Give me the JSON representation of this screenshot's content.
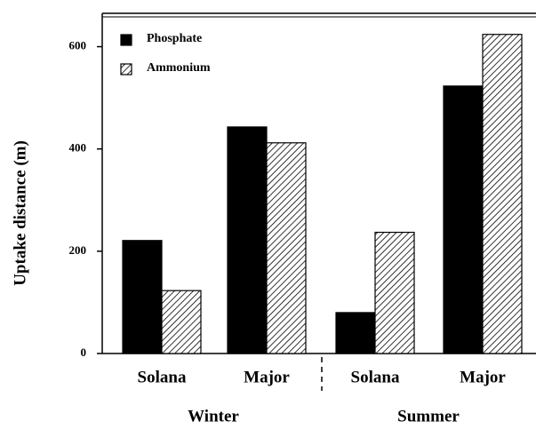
{
  "chart_data": {
    "type": "bar",
    "y_label": "Uptake distance (m)",
    "categories": [
      "Solana",
      "Major",
      "Solana",
      "Major"
    ],
    "groups": [
      "Winter",
      "Summer"
    ],
    "series": [
      {
        "name": "Phosphate",
        "color": "#000000",
        "pattern": "solid",
        "values": [
          221,
          443,
          80,
          523
        ]
      },
      {
        "name": "Ammonium",
        "color": "#000000",
        "pattern": "hatch",
        "values": [
          123,
          412,
          237,
          624
        ]
      }
    ],
    "ylim": [
      0,
      660
    ],
    "yticks": [
      0,
      200,
      400,
      600
    ],
    "legend": "top-left"
  }
}
